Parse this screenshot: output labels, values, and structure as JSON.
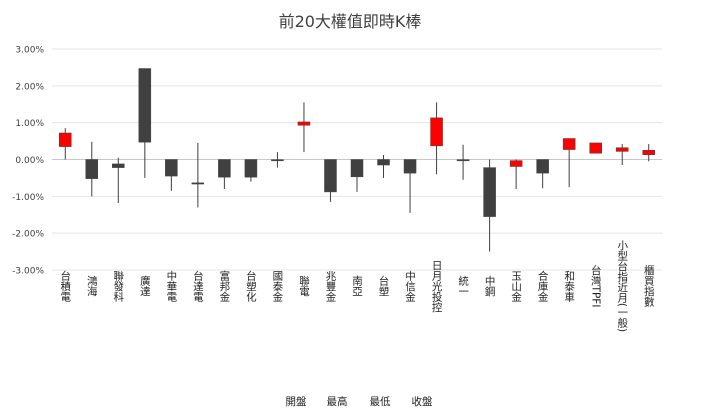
{
  "chart_data": {
    "type": "candlestick",
    "title": "前20大權值即時K棒",
    "ylim": [
      -0.03,
      0.03
    ],
    "yticks": [
      0.03,
      0.02,
      0.01,
      0.0,
      -0.01,
      -0.02,
      -0.03
    ],
    "ytick_labels": [
      "3.00%",
      "2.00%",
      "1.00%",
      "0.00%",
      "-1.00%",
      "-2.00%",
      "-3.00%"
    ],
    "legend": [
      "開盤",
      "最高",
      "最低",
      "收盤"
    ],
    "up_color": "#ff0000",
    "down_color": "#404040",
    "categories": [
      "台積電",
      "鴻海",
      "聯發科",
      "廣達",
      "中華電",
      "台達電",
      "富邦金",
      "台塑化",
      "國泰金",
      "聯電",
      "兆豐金",
      "南亞",
      "台塑",
      "中信金",
      "日月光投控",
      "統一",
      "中鋼",
      "玉山金",
      "合庫金",
      "和泰車",
      "台灣TPFI",
      "小型台指近月(一般)",
      "櫃買指數"
    ],
    "series": [
      {
        "name": "開盤",
        "values": [
          0.0035,
          0.0,
          -0.0012,
          0.0247,
          0.0,
          -0.0065,
          0.0,
          0.0,
          -0.0002,
          0.0093,
          0.0,
          0.0,
          0.0,
          0.0,
          0.0037,
          -0.0002,
          -0.0022,
          -0.0019,
          0.0,
          0.0027,
          0.0017,
          0.0022,
          0.0013
        ]
      },
      {
        "name": "最高",
        "values": [
          0.0085,
          0.0048,
          0.0005,
          0.0247,
          0.0,
          0.0045,
          0.0,
          0.0,
          0.002,
          0.0155,
          0.0,
          0.0,
          0.0012,
          0.0,
          0.0155,
          0.004,
          0.0,
          0.0,
          0.0,
          0.0057,
          0.0045,
          0.0042,
          0.0042
        ]
      },
      {
        "name": "最低",
        "values": [
          0.0,
          -0.01,
          -0.0118,
          -0.005,
          -0.0085,
          -0.013,
          -0.008,
          -0.006,
          -0.0022,
          0.002,
          -0.0115,
          -0.0088,
          -0.005,
          -0.0145,
          -0.004,
          -0.0055,
          -0.025,
          -0.008,
          -0.0078,
          -0.0075,
          0.0017,
          -0.0015,
          -0.0005
        ]
      },
      {
        "name": "收盤",
        "values": [
          0.0072,
          -0.0052,
          -0.0022,
          0.0047,
          -0.0045,
          -0.0065,
          -0.0048,
          -0.0048,
          -0.0002,
          0.0102,
          -0.0088,
          -0.0047,
          -0.0015,
          -0.0037,
          0.0113,
          -0.0002,
          -0.0155,
          -0.0003,
          -0.0037,
          0.0057,
          0.0045,
          0.0032,
          0.0025
        ]
      }
    ]
  }
}
